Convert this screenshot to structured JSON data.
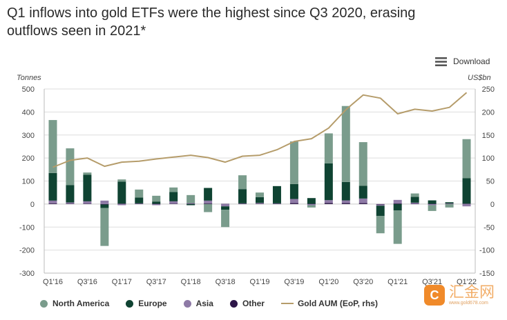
{
  "title": {
    "line1": "Q1 inflows into gold ETFs were the highest since Q3 2020, erasing",
    "line2": "outflows seen in 2021*"
  },
  "download_label": "Download",
  "axis_units": {
    "left": "Tonnes",
    "right": "US$bn"
  },
  "colors": {
    "north_america": "#7a9c8c",
    "europe": "#0f4332",
    "asia": "#8e7aa6",
    "other": "#2c1548",
    "aum": "#b59c6a",
    "grid": "#dddddd"
  },
  "legend": {
    "north_america": "North America",
    "europe": "Europe",
    "asia": "Asia",
    "other": "Other",
    "aum": "Gold AUM (EoP, rhs)"
  },
  "watermark": {
    "logo": "C",
    "main": "汇金网",
    "sub": "www.gold678.com"
  },
  "chart_data": {
    "type": "bar",
    "stacked": true,
    "categories": [
      "Q1'16",
      "Q2'16",
      "Q3'16",
      "Q4'16",
      "Q1'17",
      "Q2'17",
      "Q3'17",
      "Q4'17",
      "Q1'18",
      "Q2'18",
      "Q3'18",
      "Q4'18",
      "Q1'19",
      "Q2'19",
      "Q3'19",
      "Q4'19",
      "Q1'20",
      "Q2'20",
      "Q3'20",
      "Q4'20",
      "Q1'21",
      "Q2'21",
      "Q3'21",
      "Q4'21",
      "Q1'22"
    ],
    "tick_labels": [
      "Q1'16",
      "",
      "Q3'16",
      "",
      "Q1'17",
      "",
      "Q3'17",
      "",
      "Q1'18",
      "",
      "Q3'18",
      "",
      "Q1'19",
      "",
      "Q3'19",
      "",
      "Q1'20",
      "",
      "Q3'20",
      "",
      "Q1'21",
      "",
      "Q3'21",
      "",
      "Q1'22"
    ],
    "series": [
      {
        "name": "North America",
        "values": [
          230,
          160,
          10,
          -165,
          10,
          35,
          25,
          20,
          35,
          -35,
          -75,
          60,
          20,
          0,
          185,
          -10,
          130,
          330,
          190,
          -75,
          -145,
          15,
          -25,
          -15,
          170
        ]
      },
      {
        "name": "Europe",
        "values": [
          120,
          75,
          115,
          -15,
          95,
          25,
          10,
          40,
          -5,
          55,
          -15,
          62,
          25,
          75,
          65,
          25,
          160,
          80,
          55,
          -45,
          -28,
          25,
          15,
          5,
          110
        ]
      },
      {
        "name": "Asia",
        "values": [
          12,
          5,
          10,
          15,
          -5,
          2,
          -5,
          10,
          3,
          12,
          -10,
          2,
          3,
          2,
          18,
          -5,
          12,
          12,
          20,
          -5,
          15,
          5,
          -5,
          2,
          -10
        ]
      },
      {
        "name": "Other",
        "values": [
          3,
          2,
          2,
          -2,
          2,
          1,
          1,
          2,
          1,
          3,
          1,
          1,
          2,
          1,
          4,
          1,
          5,
          4,
          4,
          -2,
          3,
          1,
          1,
          1,
          2
        ]
      }
    ],
    "line": {
      "name": "Gold AUM (EoP, rhs)",
      "axis": "right",
      "values": [
        80,
        95,
        100,
        82,
        91,
        93,
        98,
        102,
        106,
        101,
        91,
        104,
        106,
        118,
        136,
        142,
        165,
        205,
        237,
        230,
        196,
        206,
        202,
        210,
        242
      ]
    },
    "y_left": {
      "min": -300,
      "max": 500,
      "ticks": [
        500,
        400,
        300,
        200,
        100,
        0,
        -100,
        -200,
        -300
      ],
      "label": "Tonnes"
    },
    "y_right": {
      "min": -150,
      "max": 250,
      "ticks": [
        250,
        200,
        150,
        100,
        50,
        0,
        -50,
        -100,
        -150
      ],
      "label": "US$bn"
    },
    "grid": true,
    "legend_position": "bottom"
  }
}
